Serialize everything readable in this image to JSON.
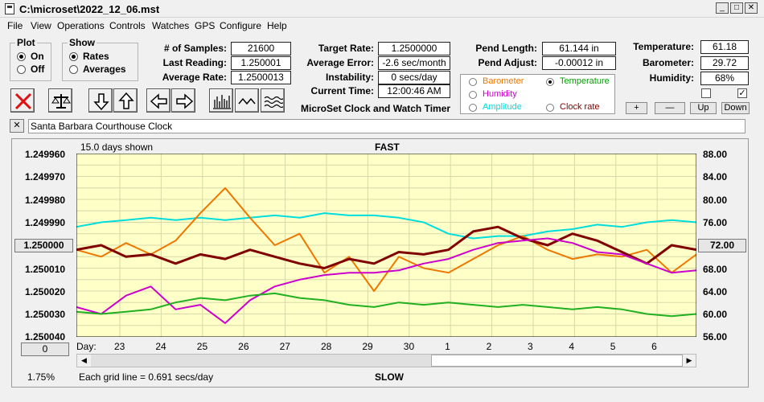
{
  "window": {
    "title": "C:\\microset\\2022_12_06.mst"
  },
  "menu": [
    "File",
    "View",
    "Operations",
    "Controls",
    "Watches",
    "GPS",
    "Configure",
    "Help"
  ],
  "plot_group": {
    "title": "Plot",
    "on": "On",
    "off": "Off",
    "selected": "On"
  },
  "show_group": {
    "title": "Show",
    "rates": "Rates",
    "averages": "Averages",
    "selected": "Rates"
  },
  "fields": {
    "samples_label": "# of Samples:",
    "samples": "21600",
    "last_reading_label": "Last Reading:",
    "last_reading": "1.250001",
    "average_rate_label": "Average Rate:",
    "average_rate": "1.2500013",
    "target_rate_label": "Target Rate:",
    "target_rate": "1.2500000",
    "average_error_label": "Average Error:",
    "average_error": "-2.6 sec/month",
    "instability_label": "Instability:",
    "instability": "0 secs/day",
    "current_time_label": "Current Time:",
    "current_time": "12:00:46 AM",
    "pend_length_label": "Pend Length:",
    "pend_length": "61.144 in",
    "pend_adjust_label": "Pend Adjust:",
    "pend_adjust": "-0.00012 in",
    "temperature_label": "Temperature:",
    "temperature": "61.18",
    "barometer_label": "Barometer:",
    "barometer": "29.72",
    "humidity_label": "Humidity:",
    "humidity": "68%"
  },
  "product_title": "MicroSet Clock and Watch Timer",
  "plot_select": {
    "items": [
      {
        "label": "Barometer",
        "color": "#ee7700",
        "selected": false
      },
      {
        "label": "Temperature",
        "color": "#00a000",
        "selected": true
      },
      {
        "label": "Humidity",
        "color": "#cc00cc",
        "selected": false
      },
      {
        "label": "Amplitude",
        "color": "#00dddd",
        "selected": false
      },
      {
        "label": "Clock rate",
        "color": "#800000",
        "selected": false
      }
    ]
  },
  "scale_buttons": {
    "plus": "+",
    "minus": "—",
    "up": "Up",
    "down": "Down"
  },
  "checkboxes": {
    "left": "",
    "right": "✓"
  },
  "watch_name": "Santa Barbara Courthouse Clock",
  "close_mark": "✕",
  "icons": [
    "cancel-icon",
    "balance-scale-icon",
    "arrow-down-icon",
    "arrow-up-icon",
    "arrow-left-icon",
    "arrow-right-icon",
    "bar-graph-icon",
    "wave-icon",
    "multi-wave-icon"
  ],
  "chart": {
    "days_shown": "15.0 days shown",
    "fast": "FAST",
    "slow": "SLOW",
    "left_value_button": "1.250000",
    "right_value_button": "72.00",
    "bottom_left_button": "0",
    "percent": "1.75%",
    "day_prefix": "Day:",
    "grid_note": "Each grid line = 0.691 secs/day"
  },
  "chart_data": {
    "type": "line",
    "ytick_left": [
      "1.249960",
      "1.249970",
      "1.249980",
      "1.249990",
      "1.250010",
      "1.250020",
      "1.250030",
      "1.250040"
    ],
    "ytick_right": [
      "88.00",
      "84.00",
      "80.00",
      "76.00",
      "68.00",
      "64.00",
      "60.00",
      "56.00"
    ],
    "ylim_left": [
      1.24996,
      1.25004
    ],
    "ylim_right": [
      56,
      88
    ],
    "days": [
      "23",
      "24",
      "25",
      "26",
      "27",
      "28",
      "29",
      "30",
      "1",
      "2",
      "3",
      "4",
      "5",
      "6"
    ],
    "xlim_days": [
      0,
      15
    ],
    "series": [
      {
        "color": "#00dddd",
        "x": [
          0,
          0.6,
          1.2,
          1.8,
          2.4,
          3.0,
          3.6,
          4.2,
          4.8,
          5.4,
          6.0,
          6.6,
          7.2,
          7.8,
          8.4,
          9.0,
          9.6,
          10.2,
          10.8,
          11.4,
          12.0,
          12.6,
          13.2,
          13.8,
          14.4,
          15.0
        ],
        "y": [
          1.249992,
          1.24999,
          1.249989,
          1.249988,
          1.249989,
          1.249988,
          1.249989,
          1.249988,
          1.249987,
          1.249988,
          1.249986,
          1.249987,
          1.249987,
          1.249988,
          1.24999,
          1.249995,
          1.249997,
          1.249996,
          1.249996,
          1.249994,
          1.249993,
          1.249991,
          1.249992,
          1.24999,
          1.249989,
          1.24999
        ]
      },
      {
        "color": "#ee7700",
        "x": [
          0,
          0.6,
          1.2,
          1.8,
          2.4,
          3.0,
          3.6,
          4.2,
          4.8,
          5.4,
          6.0,
          6.6,
          7.2,
          7.8,
          8.4,
          9.0,
          9.6,
          10.2,
          10.8,
          11.4,
          12.0,
          12.6,
          13.2,
          13.8,
          14.4,
          15.0
        ],
        "y": [
          1.250002,
          1.250005,
          1.249999,
          1.250004,
          1.249998,
          1.249986,
          1.249975,
          1.249988,
          1.25,
          1.249995,
          1.250012,
          1.250005,
          1.25002,
          1.250005,
          1.25001,
          1.250012,
          1.250006,
          1.25,
          1.249996,
          1.250002,
          1.250006,
          1.250004,
          1.250005,
          1.250002,
          1.250012,
          1.250004
        ]
      },
      {
        "color": "#800000",
        "x": [
          0,
          0.6,
          1.2,
          1.8,
          2.4,
          3.0,
          3.6,
          4.2,
          4.8,
          5.4,
          6.0,
          6.6,
          7.2,
          7.8,
          8.4,
          9.0,
          9.6,
          10.2,
          10.8,
          11.4,
          12.0,
          12.6,
          13.2,
          13.8,
          14.4,
          15.0
        ],
        "y": [
          1.250002,
          1.25,
          1.250005,
          1.250004,
          1.250008,
          1.250004,
          1.250006,
          1.250002,
          1.250005,
          1.250008,
          1.25001,
          1.250006,
          1.250008,
          1.250003,
          1.250004,
          1.250002,
          1.249994,
          1.249992,
          1.249997,
          1.25,
          1.249995,
          1.249998,
          1.250003,
          1.250008,
          1.25,
          1.250002
        ]
      },
      {
        "color": "#cc00cc",
        "x": [
          0,
          0.6,
          1.2,
          1.8,
          2.4,
          3.0,
          3.6,
          4.2,
          4.8,
          5.4,
          6.0,
          6.6,
          7.2,
          7.8,
          8.4,
          9.0,
          9.6,
          10.2,
          10.8,
          11.4,
          12.0,
          12.6,
          13.2,
          13.8,
          14.4,
          15.0
        ],
        "y": [
          1.250027,
          1.25003,
          1.250022,
          1.250018,
          1.250028,
          1.250026,
          1.250034,
          1.250024,
          1.250018,
          1.250015,
          1.250013,
          1.250012,
          1.250012,
          1.250011,
          1.250008,
          1.250006,
          1.250002,
          1.249999,
          1.249998,
          1.249997,
          1.249999,
          1.250003,
          1.250004,
          1.250008,
          1.250012,
          1.250011
        ]
      },
      {
        "color": "#20b020",
        "x": [
          0,
          0.6,
          1.2,
          1.8,
          2.4,
          3.0,
          3.6,
          4.2,
          4.8,
          5.4,
          6.0,
          6.6,
          7.2,
          7.8,
          8.4,
          9.0,
          9.6,
          10.2,
          10.8,
          11.4,
          12.0,
          12.6,
          13.2,
          13.8,
          14.4,
          15.0
        ],
        "y": [
          1.250029,
          1.25003,
          1.250029,
          1.250028,
          1.250025,
          1.250023,
          1.250024,
          1.250022,
          1.250021,
          1.250023,
          1.250024,
          1.250026,
          1.250027,
          1.250025,
          1.250026,
          1.250025,
          1.250026,
          1.250027,
          1.250026,
          1.250027,
          1.250028,
          1.250027,
          1.250028,
          1.25003,
          1.250031,
          1.25003
        ]
      }
    ]
  }
}
